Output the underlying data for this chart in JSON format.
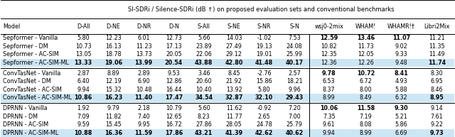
{
  "title": "SI-SDRi / Silence-SDRi (dB ↑) on proposed evaluation sets and conventional benchmarks",
  "col_headers": [
    "D-All",
    "D-NE",
    "D-NR",
    "D-N",
    "S-All",
    "S-NE",
    "S-NR",
    "S-N",
    "wsj0-2mix",
    "WHAM!",
    "WHAMR!†",
    "Libri2Mix"
  ],
  "rows": [
    {
      "model": "Sepformer - Vanilla",
      "vals": [
        "5.80",
        "12.23",
        "6.01",
        "12.73",
        "5.66",
        "14.03",
        "-1.02",
        "7.53",
        "12.59",
        "13.46",
        "11.07",
        "11.21"
      ],
      "bold": [
        0,
        0,
        0,
        0,
        0,
        0,
        0,
        0,
        1,
        1,
        1,
        0
      ],
      "highlight": false
    },
    {
      "model": "Sepformer - DM",
      "vals": [
        "10.73",
        "16.13",
        "11.23",
        "17.13",
        "23.89",
        "27.49",
        "19.13",
        "24.08",
        "10.82",
        "11.73",
        "9.02",
        "11.35"
      ],
      "bold": [
        0,
        0,
        0,
        0,
        0,
        0,
        0,
        0,
        0,
        0,
        0,
        0
      ],
      "highlight": false
    },
    {
      "model": "Sepformer - AC-SIM",
      "vals": [
        "13.05",
        "18.78",
        "13.73",
        "20.05",
        "22.06",
        "29.12",
        "19.01",
        "25.99",
        "12.35",
        "12.05",
        "9.33",
        "11.49"
      ],
      "bold": [
        0,
        0,
        0,
        0,
        0,
        0,
        0,
        0,
        0,
        0,
        0,
        0
      ],
      "highlight": false
    },
    {
      "model": "Sepformer - AC-SIM-ML",
      "vals": [
        "13.33",
        "19.06",
        "13.99",
        "20.54",
        "43.88",
        "42.80",
        "41.48",
        "40.17",
        "12.36",
        "12.26",
        "9.48",
        "11.74"
      ],
      "bold": [
        1,
        1,
        1,
        1,
        1,
        1,
        1,
        1,
        0,
        0,
        0,
        1
      ],
      "highlight": true
    },
    {
      "model": "ConvTasNet - Vanilla",
      "vals": [
        "2.87",
        "8.89",
        "2.89",
        "9.53",
        "3.46",
        "8.45",
        "-2.76",
        "2.57",
        "9.78",
        "10.72",
        "8.41",
        "8.30"
      ],
      "bold": [
        0,
        0,
        0,
        0,
        0,
        0,
        0,
        0,
        1,
        1,
        1,
        0
      ],
      "highlight": false
    },
    {
      "model": "ConvTasNet - DM",
      "vals": [
        "6.40",
        "12.19",
        "6.90",
        "12.86",
        "20.60",
        "21.92",
        "15.86",
        "18.21",
        "6.53",
        "6.72",
        "4.93",
        "6.95"
      ],
      "bold": [
        0,
        0,
        0,
        0,
        0,
        0,
        0,
        0,
        0,
        0,
        0,
        0
      ],
      "highlight": false
    },
    {
      "model": "ConvTasNet - AC-SIM",
      "vals": [
        "9.94",
        "15.32",
        "10.48",
        "16.44",
        "10.40",
        "13.92",
        "5.80",
        "9.96",
        "8.37",
        "8.00",
        "5.88",
        "8.46"
      ],
      "bold": [
        0,
        0,
        0,
        0,
        0,
        0,
        0,
        0,
        0,
        0,
        0,
        0
      ],
      "highlight": false
    },
    {
      "model": "ConvTasNet - AC-SIM-ML",
      "vals": [
        "10.86",
        "16.23",
        "11.40",
        "17.47",
        "34.54",
        "32.87",
        "32.10",
        "29.43",
        "8.99",
        "8.49",
        "6.32",
        "8.95"
      ],
      "bold": [
        1,
        1,
        1,
        1,
        1,
        1,
        1,
        1,
        0,
        0,
        0,
        1
      ],
      "highlight": true
    },
    {
      "model": "DPRNN - Vanilla",
      "vals": [
        "1.92",
        "9.79",
        "2.18",
        "10.79",
        "5.60",
        "11.62",
        "-0.92",
        "7.20",
        "10.06",
        "11.58",
        "9.30",
        "9.14"
      ],
      "bold": [
        0,
        0,
        0,
        0,
        0,
        0,
        0,
        0,
        1,
        1,
        1,
        0
      ],
      "highlight": false
    },
    {
      "model": "DPRNN - DM",
      "vals": [
        "7.09",
        "11.82",
        "7.40",
        "12.65",
        "8.23",
        "11.77",
        "2.65",
        "7.00",
        "7.35",
        "7.19",
        "5.21",
        "7.61"
      ],
      "bold": [
        0,
        0,
        0,
        0,
        0,
        0,
        0,
        0,
        0,
        0,
        0,
        0
      ],
      "highlight": false
    },
    {
      "model": "DPRNN - AC-SIM",
      "vals": [
        "9.59",
        "15.45",
        "9.95",
        "16.72",
        "27.86",
        "28.05",
        "24.78",
        "25.79",
        "9.61",
        "8.08",
        "5.86",
        "9.22"
      ],
      "bold": [
        0,
        0,
        0,
        0,
        0,
        0,
        0,
        0,
        0,
        0,
        0,
        0
      ],
      "highlight": false
    },
    {
      "model": "DPRNN - AC-SIM-ML",
      "vals": [
        "10.88",
        "16.36",
        "11.59",
        "17.86",
        "43.21",
        "41.39",
        "42.62",
        "40.62",
        "9.94",
        "8.99",
        "6.69",
        "9.73"
      ],
      "bold": [
        1,
        1,
        1,
        1,
        1,
        1,
        1,
        1,
        0,
        0,
        0,
        1
      ],
      "highlight": true
    }
  ],
  "model_group_separators": [
    4,
    8
  ],
  "highlight_color": "#cde6f5",
  "font_size": 5.8,
  "header_font_size": 5.8,
  "title_font_size": 6.0
}
